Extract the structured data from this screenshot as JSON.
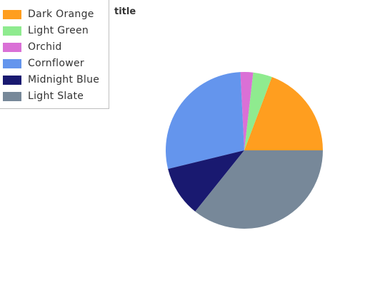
{
  "chart_data": {
    "type": "pie",
    "title": "title",
    "legend_position": "top-left",
    "slices": [
      {
        "label": "Dark Orange",
        "value": 19.2,
        "color": "#FF9E1F"
      },
      {
        "label": "Light Green",
        "value": 3.9,
        "color": "#8FEB8F"
      },
      {
        "label": "Orchid",
        "value": 2.6,
        "color": "#DA70D6"
      },
      {
        "label": "Cornflower",
        "value": 27.9,
        "color": "#6495ED"
      },
      {
        "label": "Midnight Blue",
        "value": 10.4,
        "color": "#191970"
      },
      {
        "label": "Light Slate",
        "value": 35.6,
        "color": "#778899"
      }
    ]
  }
}
